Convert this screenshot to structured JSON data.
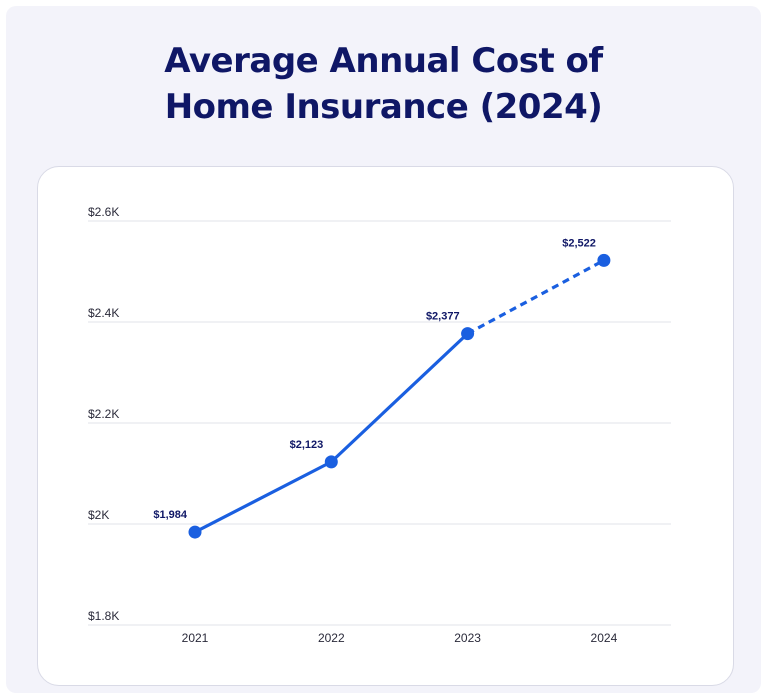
{
  "title_lines": [
    "Average Annual Cost of",
    "Home Insurance (2024)"
  ],
  "chart_data": {
    "type": "line",
    "title": "Average Annual Cost of Home Insurance (2024)",
    "xlabel": "",
    "ylabel": "",
    "categories": [
      "2021",
      "2022",
      "2023",
      "2024"
    ],
    "series": [
      {
        "values": [
          1984,
          2123,
          2377,
          2522
        ],
        "labels": [
          "$1,984",
          "$2,123",
          "$2,377",
          "$2,522"
        ],
        "color": "#1a5fe0",
        "dashed_from_index": 2
      }
    ],
    "ylim": [
      1800,
      2600
    ],
    "yticks": [
      1800,
      2000,
      2200,
      2400,
      2600
    ],
    "ytick_labels": [
      "$1.8K",
      "$2K",
      "$2.2K",
      "$2.4K",
      "$2.6K"
    ],
    "grid": true,
    "legend": "none"
  },
  "colors": {
    "title": "#0f1766",
    "line": "#1a5fe0",
    "grid": "#e2e3ea",
    "background": "#f3f3fa"
  }
}
